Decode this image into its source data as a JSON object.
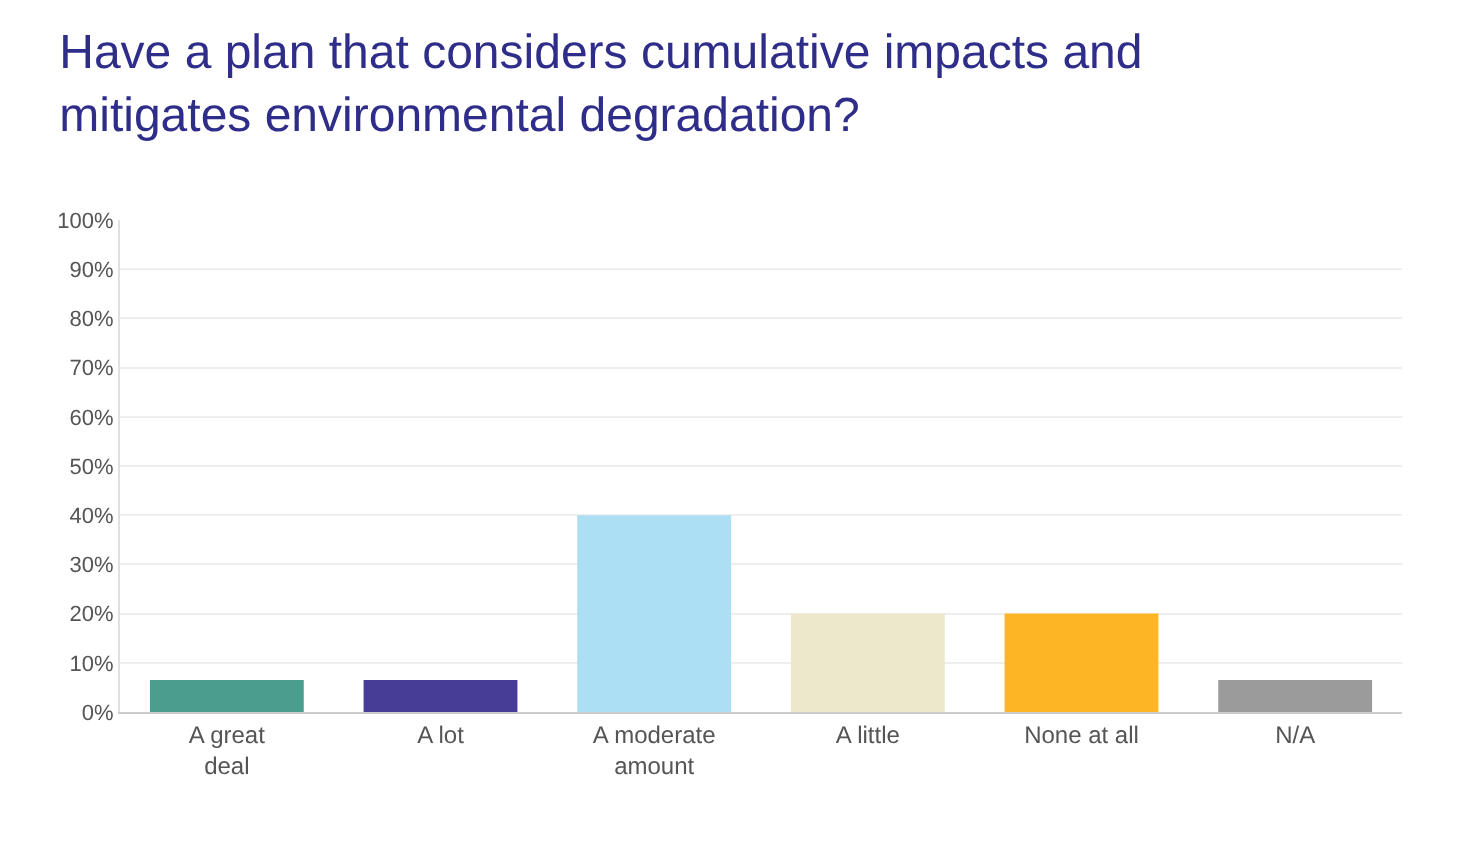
{
  "chart_data": {
    "type": "bar",
    "title": "Have a plan that considers cumulative impacts and mitigates environmental degradation?",
    "categories": [
      "A great deal",
      "A lot",
      "A moderate amount",
      "A little",
      "None at all",
      "N/A"
    ],
    "values": [
      6.5,
      6.5,
      40,
      20,
      20,
      6.5
    ],
    "colors": [
      "#4a9e8e",
      "#483d96",
      "#acdff3",
      "#ede8cc",
      "#fdb526",
      "#9b9b9b"
    ],
    "ylim": [
      0,
      100
    ],
    "yticks": [
      {
        "value": 0,
        "label": "0%"
      },
      {
        "value": 10,
        "label": "10%"
      },
      {
        "value": 20,
        "label": "20%"
      },
      {
        "value": 30,
        "label": "30%"
      },
      {
        "value": 40,
        "label": "40%"
      },
      {
        "value": 50,
        "label": "50%"
      },
      {
        "value": 60,
        "label": "60%"
      },
      {
        "value": 70,
        "label": "70%"
      },
      {
        "value": 80,
        "label": "80%"
      },
      {
        "value": 90,
        "label": "90%"
      },
      {
        "value": 100,
        "label": "100%"
      }
    ],
    "grid": "y"
  }
}
